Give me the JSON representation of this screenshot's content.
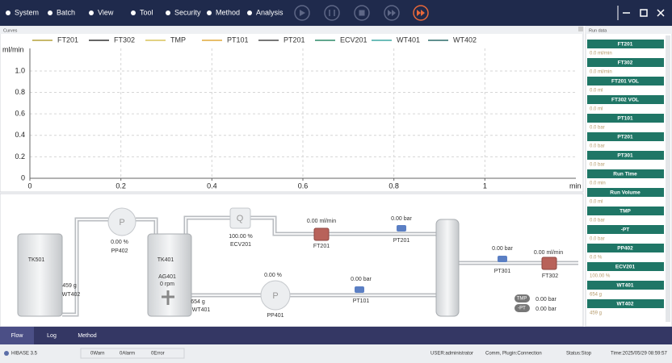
{
  "menu": {
    "items": [
      "System",
      "Batch",
      "View",
      "Tool",
      "Security",
      "Method",
      "Analysis"
    ]
  },
  "curves_panel": {
    "title": "Curves"
  },
  "chart_data": {
    "type": "line",
    "y_label": "ml/min",
    "x_label": "min",
    "x": [],
    "series": [
      {
        "name": "FT201",
        "color": "#b5a23a",
        "values": []
      },
      {
        "name": "FT302",
        "color": "#333333",
        "values": []
      },
      {
        "name": "TMP",
        "color": "#d9c45a",
        "values": []
      },
      {
        "name": "PT101",
        "color": "#e0a93a",
        "values": []
      },
      {
        "name": "PT201",
        "color": "#4a4a4a",
        "values": []
      },
      {
        "name": "ECV201",
        "color": "#2f8a68",
        "values": []
      },
      {
        "name": "WT401",
        "color": "#3fa7a4",
        "values": []
      },
      {
        "name": "WT402",
        "color": "#2d6b6a",
        "values": []
      }
    ],
    "xlim": [
      0,
      1.2
    ],
    "xticks": [
      0,
      0.2,
      0.4,
      0.6,
      0.8,
      1
    ],
    "ylim": [
      0,
      1.21
    ],
    "yticks": [
      0,
      0.2,
      0.4,
      0.6,
      0.8,
      {
        "value": 1,
        "label": "1.0"
      }
    ],
    "grid": true
  },
  "run_data": {
    "title": "Run data",
    "items": [
      {
        "label": "FT201",
        "value": "0.0 ml/min"
      },
      {
        "label": "FT302",
        "value": "0.0 ml/min"
      },
      {
        "label": "FT201 VOL",
        "value": "0.0 ml"
      },
      {
        "label": "FT302 VOL",
        "value": "0.0 ml"
      },
      {
        "label": "PT101",
        "value": "0.0 bar"
      },
      {
        "label": "PT201",
        "value": "0.0 bar"
      },
      {
        "label": "PT301",
        "value": "0.0 bar"
      },
      {
        "label": "Run Time",
        "value": "0.0 min"
      },
      {
        "label": "Run Volume",
        "value": "0.0 ml"
      },
      {
        "label": "TMP",
        "value": "0.0 bar"
      },
      {
        "label": "-PT",
        "value": "0.0 bar"
      },
      {
        "label": "PP402",
        "value": "0.0 %"
      },
      {
        "label": "ECV201",
        "value": "100.00 %"
      },
      {
        "label": "WT401",
        "value": "654 g"
      },
      {
        "label": "WT402",
        "value": "459 g"
      }
    ]
  },
  "flow": {
    "tk501": "TK501",
    "tk401": "TK401",
    "wt402": {
      "value": "459 g",
      "label": "WT402"
    },
    "pp402": {
      "symbol": "P",
      "value": "0.00  %",
      "label": "PP402"
    },
    "ag401": {
      "label": "AG401",
      "value": "0 rpm"
    },
    "wt401": {
      "value": "654 g",
      "label": "WT401"
    },
    "ecv201": {
      "symbol": "Q",
      "value": "100.00 %",
      "label": "ECV201"
    },
    "ft201": {
      "value": "0.00 ml/min",
      "label": "FT201"
    },
    "pt201": {
      "value": "0.00 bar",
      "label": "PT201"
    },
    "pp401": {
      "symbol": "P",
      "value": "0.00 %",
      "label": "PP401"
    },
    "pt101": {
      "value": "0.00 bar",
      "label": "PT101"
    },
    "pt301": {
      "value": "0.00 bar",
      "label": "PT301"
    },
    "ft302": {
      "value": "0.00 ml/min",
      "label": "FT302"
    },
    "tmp": {
      "label": "TMP",
      "value": "0.00 bar"
    },
    "dpt": {
      "label": "-PT",
      "value": "0.00 bar"
    }
  },
  "tabs": [
    "Flow",
    "Log",
    "Method"
  ],
  "status": {
    "app": "HIBASE 3.5",
    "warn": "0Warn",
    "alarm": "0Alarm",
    "error": "0Error",
    "user": "USER:administrator",
    "comm": "Comm, Plugin:Connection",
    "state": "Status:Stop",
    "time": "Time:2025/05/29 08:59:57"
  }
}
